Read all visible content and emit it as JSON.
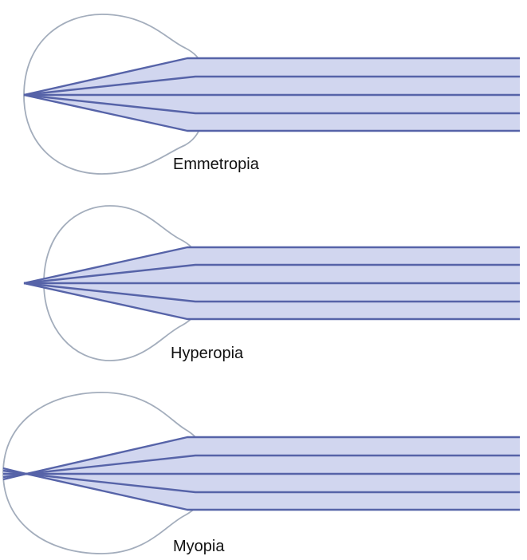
{
  "colors": {
    "eye_outline": "#a3adbc",
    "ray_stroke": "#5663a8",
    "ray_fill": "#d1d6ef",
    "label_text": "#111111"
  },
  "diagrams": [
    {
      "id": "emmetropia",
      "label": "Emmetropia",
      "focus": "on-retina"
    },
    {
      "id": "hyperopia",
      "label": "Hyperopia",
      "focus": "behind-retina"
    },
    {
      "id": "myopia",
      "label": "Myopia",
      "focus": "in-front-of-retina"
    }
  ]
}
